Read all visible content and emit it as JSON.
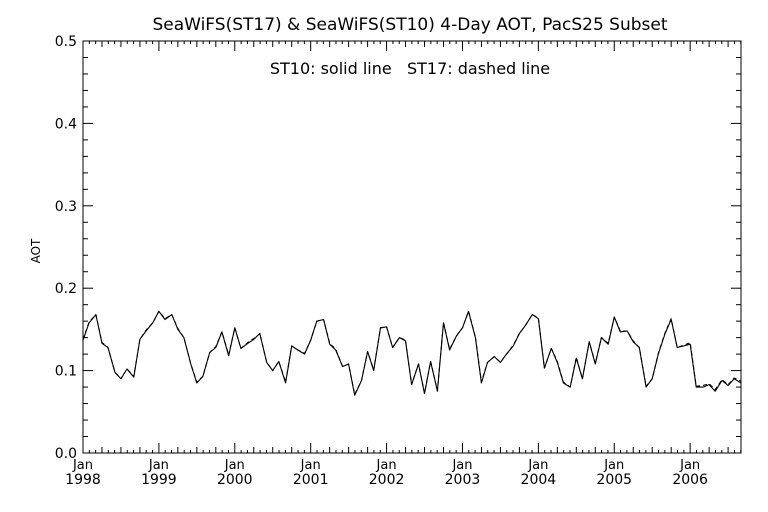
{
  "chart_data": {
    "type": "line",
    "title": "SeaWiFS(ST17) & SeaWiFS(ST10) 4-Day AOT, PacS25 Subset",
    "annotation": "ST10: solid line   ST17: dashed line",
    "xlabel": "",
    "ylabel": "AOT",
    "ylim": [
      0.0,
      0.5
    ],
    "yticks": [
      "0.0",
      "0.1",
      "0.2",
      "0.3",
      "0.4",
      "0.5"
    ],
    "xlim": [
      1998.0,
      2006.67
    ],
    "xticks": [
      {
        "month": "Jan",
        "year": "1998",
        "pos": 1998.0
      },
      {
        "month": "Jan",
        "year": "1999",
        "pos": 1999.0
      },
      {
        "month": "Jan",
        "year": "2000",
        "pos": 2000.0
      },
      {
        "month": "Jan",
        "year": "2001",
        "pos": 2001.0
      },
      {
        "month": "Jan",
        "year": "2002",
        "pos": 2002.0
      },
      {
        "month": "Jan",
        "year": "2003",
        "pos": 2003.0
      },
      {
        "month": "Jan",
        "year": "2004",
        "pos": 2004.0
      },
      {
        "month": "Jan",
        "year": "2005",
        "pos": 2005.0
      },
      {
        "month": "Jan",
        "year": "2006",
        "pos": 2006.0
      }
    ],
    "grid": false,
    "series": [
      {
        "name": "ST10",
        "style": "solid",
        "x": [
          1998.0,
          1998.08,
          1998.17,
          1998.25,
          1998.33,
          1998.42,
          1998.5,
          1998.58,
          1998.67,
          1998.75,
          1998.83,
          1998.92,
          1999.0,
          1999.08,
          1999.17,
          1999.25,
          1999.33,
          1999.42,
          1999.5,
          1999.58,
          1999.67,
          1999.75,
          1999.83,
          1999.92,
          2000.0,
          2000.08,
          2000.17,
          2000.25,
          2000.33,
          2000.42,
          2000.5,
          2000.58,
          2000.67,
          2000.75,
          2000.83,
          2000.92,
          2001.0,
          2001.08,
          2001.17,
          2001.25,
          2001.33,
          2001.42,
          2001.5,
          2001.58,
          2001.67,
          2001.75,
          2001.83,
          2001.92,
          2002.0,
          2002.08,
          2002.17,
          2002.25,
          2002.33,
          2002.42,
          2002.5,
          2002.58,
          2002.67,
          2002.75,
          2002.83,
          2002.92,
          2003.0,
          2003.08,
          2003.17,
          2003.25,
          2003.33,
          2003.42,
          2003.5,
          2003.58,
          2003.67,
          2003.75,
          2003.83,
          2003.92,
          2004.0,
          2004.08,
          2004.17,
          2004.25,
          2004.33,
          2004.42,
          2004.5,
          2004.58,
          2004.67,
          2004.75,
          2004.83,
          2004.92,
          2005.0,
          2005.08,
          2005.17,
          2005.25,
          2005.33,
          2005.42,
          2005.5,
          2005.58,
          2005.67,
          2005.75,
          2005.83,
          2005.92,
          2006.0,
          2006.08,
          2006.17,
          2006.25,
          2006.33,
          2006.42,
          2006.5,
          2006.58,
          2006.67
        ],
        "values": [
          0.137,
          0.158,
          0.168,
          0.133,
          0.128,
          0.098,
          0.09,
          0.102,
          0.092,
          0.138,
          0.148,
          0.158,
          0.172,
          0.162,
          0.168,
          0.15,
          0.14,
          0.108,
          0.085,
          0.093,
          0.122,
          0.128,
          0.147,
          0.118,
          0.152,
          0.127,
          0.133,
          0.138,
          0.145,
          0.11,
          0.1,
          0.111,
          0.085,
          0.13,
          0.125,
          0.12,
          0.137,
          0.16,
          0.162,
          0.132,
          0.125,
          0.105,
          0.108,
          0.07,
          0.088,
          0.123,
          0.1,
          0.152,
          0.153,
          0.128,
          0.14,
          0.136,
          0.083,
          0.108,
          0.072,
          0.111,
          0.075,
          0.158,
          0.125,
          0.142,
          0.152,
          0.172,
          0.14,
          0.085,
          0.11,
          0.117,
          0.11,
          0.12,
          0.13,
          0.145,
          0.155,
          0.168,
          0.163,
          0.103,
          0.127,
          0.11,
          0.085,
          0.08,
          0.115,
          0.09,
          0.135,
          0.108,
          0.14,
          0.132,
          0.165,
          0.147,
          0.148,
          0.135,
          0.128,
          0.08,
          0.09,
          0.12,
          0.145,
          0.162,
          0.128,
          0.13,
          0.132,
          0.08,
          0.08,
          0.083,
          0.075,
          0.088,
          0.082,
          0.09,
          0.085
        ]
      },
      {
        "name": "ST17",
        "style": "dashed",
        "x": [
          1998.0,
          1998.08,
          1998.17,
          1998.25,
          1998.33,
          1998.42,
          1998.5,
          1998.58,
          1998.67,
          1998.75,
          1998.83,
          1998.92,
          1999.0,
          1999.08,
          1999.17,
          1999.25,
          1999.33,
          1999.42,
          1999.5,
          1999.58,
          1999.67,
          1999.75,
          1999.83,
          1999.92,
          2000.0,
          2000.08,
          2000.17,
          2000.25,
          2000.33,
          2000.42,
          2000.5,
          2000.58,
          2000.67,
          2000.75,
          2000.83,
          2000.92,
          2001.0,
          2001.08,
          2001.17,
          2001.25,
          2001.33,
          2001.42,
          2001.5,
          2001.58,
          2001.67,
          2001.75,
          2001.83,
          2001.92,
          2002.0,
          2002.08,
          2002.17,
          2002.25,
          2002.33,
          2002.42,
          2002.5,
          2002.58,
          2002.67,
          2002.75,
          2002.83,
          2002.92,
          2003.0,
          2003.08,
          2003.17,
          2003.25,
          2003.33,
          2003.42,
          2003.5,
          2003.58,
          2003.67,
          2003.75,
          2003.83,
          2003.92,
          2004.0,
          2004.08,
          2004.17,
          2004.25,
          2004.33,
          2004.42,
          2004.5,
          2004.58,
          2004.67,
          2004.75,
          2004.83,
          2004.92,
          2005.0,
          2005.08,
          2005.17,
          2005.25,
          2005.33,
          2005.42,
          2005.5,
          2005.58,
          2005.67,
          2005.75,
          2005.83,
          2005.92,
          2006.0,
          2006.08,
          2006.17,
          2006.25,
          2006.33,
          2006.42,
          2006.5,
          2006.58,
          2006.67
        ],
        "values": [
          0.138,
          0.159,
          0.168,
          0.134,
          0.128,
          0.098,
          0.09,
          0.102,
          0.093,
          0.138,
          0.149,
          0.158,
          0.172,
          0.163,
          0.168,
          0.151,
          0.14,
          0.108,
          0.086,
          0.093,
          0.122,
          0.129,
          0.147,
          0.119,
          0.152,
          0.127,
          0.134,
          0.139,
          0.145,
          0.11,
          0.1,
          0.111,
          0.086,
          0.13,
          0.125,
          0.121,
          0.137,
          0.16,
          0.162,
          0.133,
          0.126,
          0.105,
          0.108,
          0.071,
          0.088,
          0.123,
          0.101,
          0.152,
          0.153,
          0.128,
          0.14,
          0.137,
          0.083,
          0.108,
          0.073,
          0.111,
          0.076,
          0.158,
          0.126,
          0.142,
          0.152,
          0.172,
          0.141,
          0.086,
          0.11,
          0.117,
          0.11,
          0.12,
          0.131,
          0.145,
          0.155,
          0.168,
          0.164,
          0.103,
          0.127,
          0.111,
          0.086,
          0.08,
          0.116,
          0.09,
          0.135,
          0.109,
          0.14,
          0.133,
          0.165,
          0.148,
          0.148,
          0.136,
          0.128,
          0.081,
          0.09,
          0.121,
          0.146,
          0.163,
          0.128,
          0.131,
          0.134,
          0.081,
          0.082,
          0.084,
          0.077,
          0.089,
          0.083,
          0.091,
          0.087
        ]
      }
    ]
  }
}
